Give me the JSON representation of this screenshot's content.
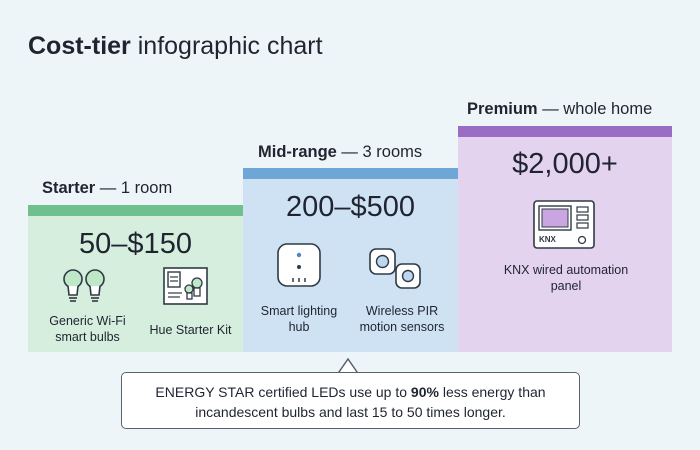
{
  "title": {
    "bold": "Cost-tier",
    "rest": " infographic chart"
  },
  "colors": {
    "starter_bar": "#6fc08f",
    "starter_panel": "#d6eedd",
    "mid_bar": "#6fa6d8",
    "mid_panel": "#cfe2f3",
    "premium_bar": "#9a6cc6",
    "premium_panel": "#e3d3ef"
  },
  "tiers": {
    "starter": {
      "name": "Starter",
      "scope": " — 1 room",
      "price": "50–$150",
      "products": [
        {
          "label": "Generic Wi-Fi smart bulbs",
          "icon": "smart-bulbs-icon"
        },
        {
          "label": "Hue Starter Kit",
          "icon": "starter-kit-icon"
        }
      ]
    },
    "mid": {
      "name": "Mid-range",
      "scope": " — 3 rooms",
      "price": "200–$500",
      "products": [
        {
          "label": "Smart lighting hub",
          "icon": "lighting-hub-icon"
        },
        {
          "label": "Wireless PIR motion sensors",
          "icon": "motion-sensor-icon"
        }
      ]
    },
    "premium": {
      "name": "Premium",
      "scope": " — whole home",
      "price": "$2,000+",
      "products": [
        {
          "label": "KNX wired automation panel",
          "icon": "knx-panel-icon",
          "panel_text": "KNX"
        }
      ]
    }
  },
  "callout": {
    "before": "ENERGY STAR certified LEDs use up to ",
    "highlight": "90%",
    "after": " less energy than incandescent bulbs and last 15 to 50 times longer."
  },
  "chart_data": {
    "type": "bar",
    "categories": [
      "Starter — 1 room",
      "Mid-range — 3 rooms",
      "Premium — whole home"
    ],
    "series": [
      {
        "values": [
          150,
          500,
          2000
        ]
      }
    ],
    "price_labels": [
      "50–$150",
      "200–$500",
      "$2,000+"
    ],
    "title": "Cost-tier infographic chart",
    "xlabel": "",
    "ylabel": ""
  }
}
